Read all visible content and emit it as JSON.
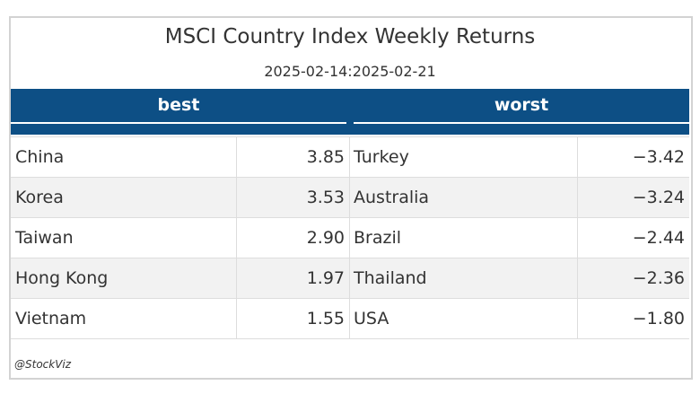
{
  "header": {
    "title": "MSCI Country Index Weekly Returns",
    "subtitle": "2025-02-14:2025-02-21"
  },
  "table": {
    "groups": [
      "best",
      "worst"
    ],
    "rows": [
      [
        "China",
        "3.85",
        "Turkey",
        "−3.42"
      ],
      [
        "Korea",
        "3.53",
        "Australia",
        "−3.24"
      ],
      [
        "Taiwan",
        "2.90",
        "Brazil",
        "−2.44"
      ],
      [
        "Hong Kong",
        "1.97",
        "Thailand",
        "−2.36"
      ],
      [
        "Vietnam",
        "1.55",
        "USA",
        "−1.80"
      ]
    ]
  },
  "footer": "@StockViz"
}
